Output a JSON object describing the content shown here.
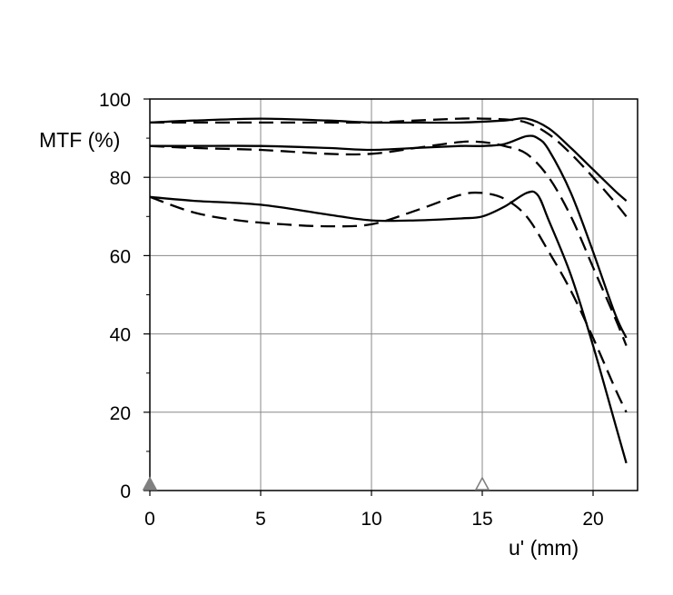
{
  "chart_data": {
    "type": "line",
    "ylabel": "MTF (%)",
    "xlabel": "u' (mm)",
    "xlim": [
      0,
      22
    ],
    "ylim": [
      0,
      100
    ],
    "x_ticks": [
      "0",
      "5",
      "10",
      "15",
      "20"
    ],
    "y_ticks": [
      "0",
      "20",
      "40",
      "60",
      "80",
      "100"
    ],
    "grid": true,
    "markers": [
      {
        "x": 0,
        "style": "filled-triangle",
        "color": "#808080"
      },
      {
        "x": 15,
        "style": "open-triangle",
        "color": "#808080"
      }
    ],
    "series": [
      {
        "style": "solid",
        "x": [
          0,
          2,
          5,
          8,
          10,
          12,
          14,
          16,
          17,
          18,
          19,
          20,
          21,
          21.5
        ],
        "values": [
          94,
          94.5,
          95,
          94.5,
          94,
          94,
          94,
          94.5,
          95,
          92.5,
          87.5,
          82,
          76.5,
          74
        ]
      },
      {
        "style": "dashed",
        "x": [
          0,
          2,
          5,
          8,
          10,
          12,
          14,
          15,
          16,
          17,
          18,
          19,
          20,
          21,
          21.5
        ],
        "values": [
          94,
          94,
          94,
          94,
          94,
          94.5,
          95,
          95,
          94.8,
          94,
          91,
          86,
          80,
          73.5,
          70
        ]
      },
      {
        "style": "solid",
        "x": [
          0,
          2,
          5,
          8,
          10,
          12,
          14,
          15,
          16,
          17,
          17.5,
          18,
          19,
          20,
          21,
          21.5
        ],
        "values": [
          88,
          88,
          88,
          87.5,
          87,
          87.5,
          88,
          88,
          88.5,
          90.5,
          90,
          87,
          76,
          61,
          45,
          39
        ]
      },
      {
        "style": "dashed",
        "x": [
          0,
          2,
          5,
          8,
          10,
          12,
          14,
          15,
          16,
          17,
          18,
          19,
          20,
          21,
          21.5
        ],
        "values": [
          88,
          87.5,
          87,
          86,
          86,
          87.5,
          89,
          89,
          88,
          86,
          80,
          70,
          57,
          44,
          37
        ]
      },
      {
        "style": "solid",
        "x": [
          0,
          2,
          5,
          8,
          10,
          12,
          14,
          15,
          16,
          17,
          17.5,
          18,
          19,
          20,
          21,
          21.5
        ],
        "values": [
          75,
          74,
          73,
          70.5,
          69,
          69,
          69.5,
          70,
          72.5,
          76,
          75.5,
          69,
          55,
          37,
          17,
          7
        ]
      },
      {
        "style": "dashed",
        "x": [
          0,
          2,
          4,
          6,
          8,
          10,
          12,
          14,
          15,
          16,
          17,
          18,
          19,
          20,
          21,
          21.5
        ],
        "values": [
          75,
          71,
          69,
          68,
          67.5,
          68,
          71.5,
          75.5,
          76,
          74.5,
          70,
          61,
          51,
          39,
          26,
          20
        ]
      }
    ]
  }
}
